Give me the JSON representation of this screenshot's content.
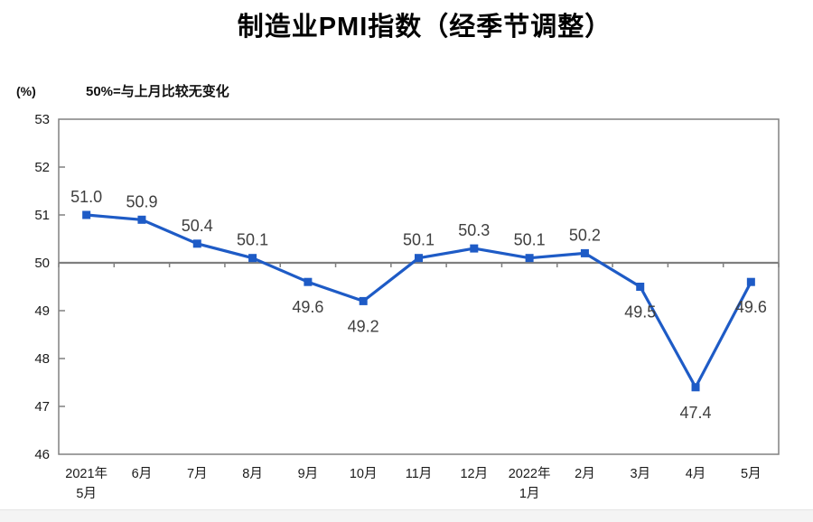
{
  "page": {
    "title": "制造业PMI指数（经季节调整）",
    "subtitle": "50%=与上月比较无变化",
    "unit_label": "(%)"
  },
  "colors": {
    "line": "#1e5bc6",
    "marker": "#1e5bc6",
    "axis": "#7f7f7f",
    "frame": "#808080",
    "data_label": "#3f3f3f",
    "tick_label": "#1a1a1a"
  },
  "chart_data": {
    "type": "line",
    "title": "制造业PMI指数（经季节调整）",
    "subtitle": "50%=与上月比较无变化",
    "ylabel": "(%)",
    "categories": [
      [
        "2021年",
        "5月"
      ],
      [
        "6月"
      ],
      [
        "7月"
      ],
      [
        "8月"
      ],
      [
        "9月"
      ],
      [
        "10月"
      ],
      [
        "11月"
      ],
      [
        "12月"
      ],
      [
        "2022年",
        "1月"
      ],
      [
        "2月"
      ],
      [
        "3月"
      ],
      [
        "4月"
      ],
      [
        "5月"
      ]
    ],
    "values": [
      51.0,
      50.9,
      50.4,
      50.1,
      49.6,
      49.2,
      50.1,
      50.3,
      50.1,
      50.2,
      49.5,
      47.4,
      49.6
    ],
    "label_positions": [
      "above",
      "above",
      "above",
      "above",
      "below",
      "below",
      "above",
      "above",
      "above",
      "above",
      "below",
      "below",
      "below"
    ],
    "value_format_decimals": 1,
    "ylim": [
      46,
      53
    ],
    "ytick_step": 1,
    "baseline": 50,
    "grid": false,
    "legend": null,
    "marker_shape": "square"
  }
}
